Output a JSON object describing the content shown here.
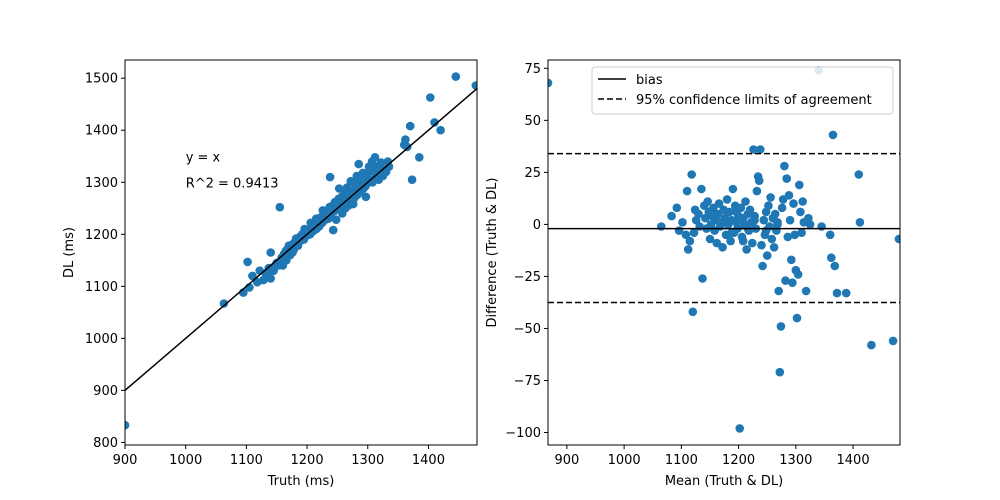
{
  "figure": {
    "description_colors": {
      "point": "#1f77b4",
      "line": "#000000"
    }
  },
  "chart_data": [
    {
      "type": "scatter",
      "title": "",
      "xlabel": "Truth (ms)",
      "ylabel": "DL (ms)",
      "xlim": [
        900,
        1480
      ],
      "ylim": [
        795,
        1535
      ],
      "xticks": [
        900,
        1000,
        1100,
        1200,
        1300,
        1400
      ],
      "yticks": [
        800,
        900,
        1000,
        1100,
        1200,
        1300,
        1400,
        1500
      ],
      "reference_line": {
        "label": "y = x",
        "slope": 1,
        "intercept": 0
      },
      "annotations": [
        "y = x",
        "R^2 = 0.9413"
      ],
      "series": [
        {
          "name": "samples",
          "color": "#1f77b4",
          "points": [
            [
              900,
              833
            ],
            [
              1063,
              1067
            ],
            [
              1095,
              1088
            ],
            [
              1102,
              1147
            ],
            [
              1105,
              1098
            ],
            [
              1110,
              1120
            ],
            [
              1118,
              1108
            ],
            [
              1122,
              1130
            ],
            [
              1128,
              1112
            ],
            [
              1132,
              1125
            ],
            [
              1137,
              1135
            ],
            [
              1140,
              1165
            ],
            [
              1140,
              1115
            ],
            [
              1145,
              1130
            ],
            [
              1150,
              1145
            ],
            [
              1153,
              1140
            ],
            [
              1155,
              1252
            ],
            [
              1158,
              1155
            ],
            [
              1160,
              1140
            ],
            [
              1162,
              1162
            ],
            [
              1165,
              1168
            ],
            [
              1168,
              1172
            ],
            [
              1170,
              1178
            ],
            [
              1172,
              1160
            ],
            [
              1175,
              1180
            ],
            [
              1178,
              1170
            ],
            [
              1180,
              1185
            ],
            [
              1182,
              1192
            ],
            [
              1185,
              1178
            ],
            [
              1188,
              1195
            ],
            [
              1190,
              1188
            ],
            [
              1192,
              1200
            ],
            [
              1195,
              1190
            ],
            [
              1197,
              1205
            ],
            [
              1200,
              1198
            ],
            [
              1202,
              1208
            ],
            [
              1205,
              1200
            ],
            [
              1207,
              1212
            ],
            [
              1210,
              1206
            ],
            [
              1212,
              1218
            ],
            [
              1215,
              1210
            ],
            [
              1218,
              1225
            ],
            [
              1220,
              1215
            ],
            [
              1222,
              1232
            ],
            [
              1225,
              1222
            ],
            [
              1228,
              1238
            ],
            [
              1230,
              1228
            ],
            [
              1232,
              1245
            ],
            [
              1235,
              1230
            ],
            [
              1237,
              1252
            ],
            [
              1238,
              1310
            ],
            [
              1240,
              1240
            ],
            [
              1242,
              1255
            ],
            [
              1243,
              1208
            ],
            [
              1245,
              1245
            ],
            [
              1247,
              1260
            ],
            [
              1248,
              1228
            ],
            [
              1250,
              1250
            ],
            [
              1252,
              1268
            ],
            [
              1253,
              1288
            ],
            [
              1255,
              1255
            ],
            [
              1257,
              1272
            ],
            [
              1258,
              1240
            ],
            [
              1260,
              1262
            ],
            [
              1262,
              1280
            ],
            [
              1263,
              1250
            ],
            [
              1265,
              1268
            ],
            [
              1267,
              1285
            ],
            [
              1268,
              1255
            ],
            [
              1270,
              1275
            ],
            [
              1272,
              1302
            ],
            [
              1273,
              1262
            ],
            [
              1275,
              1282
            ],
            [
              1277,
              1300
            ],
            [
              1278,
              1270
            ],
            [
              1280,
              1290
            ],
            [
              1282,
              1312
            ],
            [
              1283,
              1276
            ],
            [
              1285,
              1335
            ],
            [
              1287,
              1296
            ],
            [
              1288,
              1282
            ],
            [
              1290,
              1305
            ],
            [
              1292,
              1318
            ],
            [
              1293,
              1288
            ],
            [
              1295,
              1310
            ],
            [
              1297,
              1272
            ],
            [
              1298,
              1296
            ],
            [
              1300,
              1318
            ],
            [
              1302,
              1330
            ],
            [
              1303,
              1305
            ],
            [
              1305,
              1322
            ],
            [
              1307,
              1340
            ],
            [
              1308,
              1300
            ],
            [
              1310,
              1325
            ],
            [
              1312,
              1348
            ],
            [
              1313,
              1310
            ],
            [
              1315,
              1330
            ],
            [
              1318,
              1305
            ],
            [
              1320,
              1322
            ],
            [
              1322,
              1338
            ],
            [
              1325,
              1312
            ],
            [
              1328,
              1325
            ],
            [
              1330,
              1320
            ],
            [
              1333,
              1340
            ],
            [
              1335,
              1330
            ],
            [
              1360,
              1372
            ],
            [
              1362,
              1382
            ],
            [
              1365,
              1368
            ],
            [
              1370,
              1408
            ],
            [
              1373,
              1305
            ],
            [
              1385,
              1348
            ],
            [
              1403,
              1463
            ],
            [
              1410,
              1415
            ],
            [
              1420,
              1400
            ],
            [
              1445,
              1503
            ],
            [
              1478,
              1486
            ],
            [
              1215,
              1230
            ],
            [
              1226,
              1246
            ],
            [
              1256,
              1247
            ],
            [
              1266,
              1290
            ],
            [
              1186,
              1188
            ],
            [
              1196,
              1210
            ],
            [
              1176,
              1165
            ],
            [
              1166,
              1150
            ],
            [
              1146,
              1138
            ],
            [
              1136,
              1124
            ],
            [
              1206,
              1222
            ],
            [
              1246,
              1262
            ],
            [
              1276,
              1258
            ],
            [
              1296,
              1292
            ]
          ]
        }
      ]
    },
    {
      "type": "scatter",
      "title": "",
      "xlabel": "Mean (Truth & DL)",
      "ylabel": "Difference (Truth & DL)",
      "xlim": [
        867,
        1482
      ],
      "ylim": [
        -106,
        79
      ],
      "xticks": [
        900,
        1000,
        1100,
        1200,
        1300,
        1400
      ],
      "yticks": [
        -100,
        -75,
        -50,
        -25,
        0,
        25,
        50,
        75
      ],
      "bias": -2,
      "limits_of_agreement": [
        -37.5,
        34
      ],
      "legend": {
        "position": "top-right",
        "entries": [
          "bias",
          "95% confidence limits of agreement"
        ]
      },
      "series": [
        {
          "name": "differences",
          "color": "#1f77b4",
          "points": [
            [
              867,
              68
            ],
            [
              1065,
              -1
            ],
            [
              1083,
              4
            ],
            [
              1092,
              8
            ],
            [
              1096,
              -3
            ],
            [
              1102,
              1
            ],
            [
              1108,
              -5
            ],
            [
              1110,
              16
            ],
            [
              1112,
              -12
            ],
            [
              1115,
              -8
            ],
            [
              1118,
              24
            ],
            [
              1120,
              -42
            ],
            [
              1122,
              -4
            ],
            [
              1124,
              7
            ],
            [
              1126,
              2
            ],
            [
              1130,
              5
            ],
            [
              1132,
              -1
            ],
            [
              1135,
              17
            ],
            [
              1137,
              -26
            ],
            [
              1140,
              9
            ],
            [
              1142,
              3
            ],
            [
              1144,
              -2
            ],
            [
              1146,
              11
            ],
            [
              1148,
              6
            ],
            [
              1150,
              -7
            ],
            [
              1152,
              0
            ],
            [
              1154,
              4
            ],
            [
              1156,
              8
            ],
            [
              1158,
              -3
            ],
            [
              1160,
              2
            ],
            [
              1162,
              -9
            ],
            [
              1164,
              5
            ],
            [
              1166,
              10
            ],
            [
              1168,
              -1
            ],
            [
              1170,
              1
            ],
            [
              1172,
              -11
            ],
            [
              1174,
              7
            ],
            [
              1176,
              3
            ],
            [
              1178,
              -5
            ],
            [
              1180,
              12
            ],
            [
              1182,
              0
            ],
            [
              1184,
              6
            ],
            [
              1186,
              -8
            ],
            [
              1188,
              2
            ],
            [
              1190,
              17
            ],
            [
              1192,
              -4
            ],
            [
              1194,
              9
            ],
            [
              1196,
              1
            ],
            [
              1198,
              -2
            ],
            [
              1200,
              4
            ],
            [
              1202,
              -98
            ],
            [
              1204,
              8
            ],
            [
              1206,
              -6
            ],
            [
              1208,
              3
            ],
            [
              1210,
              0
            ],
            [
              1212,
              11
            ],
            [
              1214,
              -12
            ],
            [
              1216,
              5
            ],
            [
              1218,
              -3
            ],
            [
              1220,
              7
            ],
            [
              1222,
              1
            ],
            [
              1224,
              -9
            ],
            [
              1226,
              36
            ],
            [
              1228,
              4
            ],
            [
              1230,
              -2
            ],
            [
              1232,
              16
            ],
            [
              1234,
              23
            ],
            [
              1236,
              21
            ],
            [
              1238,
              36
            ],
            [
              1240,
              -10
            ],
            [
              1242,
              -20
            ],
            [
              1244,
              2
            ],
            [
              1246,
              -5
            ],
            [
              1248,
              6
            ],
            [
              1250,
              -15
            ],
            [
              1252,
              9
            ],
            [
              1254,
              -1
            ],
            [
              1256,
              13
            ],
            [
              1258,
              -7
            ],
            [
              1260,
              3
            ],
            [
              1262,
              -11
            ],
            [
              1264,
              5
            ],
            [
              1266,
              -3
            ],
            [
              1268,
              0
            ],
            [
              1270,
              -32
            ],
            [
              1272,
              -71
            ],
            [
              1274,
              -49
            ],
            [
              1276,
              8
            ],
            [
              1278,
              12
            ],
            [
              1280,
              28
            ],
            [
              1282,
              -27
            ],
            [
              1284,
              22
            ],
            [
              1286,
              -6
            ],
            [
              1288,
              14
            ],
            [
              1290,
              2
            ],
            [
              1292,
              -17
            ],
            [
              1294,
              -28
            ],
            [
              1296,
              10
            ],
            [
              1298,
              -5
            ],
            [
              1300,
              -22
            ],
            [
              1302,
              -45
            ],
            [
              1304,
              -24
            ],
            [
              1306,
              19
            ],
            [
              1308,
              6
            ],
            [
              1310,
              -4
            ],
            [
              1312,
              11
            ],
            [
              1314,
              1
            ],
            [
              1318,
              -32
            ],
            [
              1322,
              3
            ],
            [
              1325,
              0
            ],
            [
              1340,
              74
            ],
            [
              1345,
              -1
            ],
            [
              1360,
              -5
            ],
            [
              1362,
              -16
            ],
            [
              1365,
              43
            ],
            [
              1368,
              -20
            ],
            [
              1372,
              -33
            ],
            [
              1388,
              -33
            ],
            [
              1410,
              24
            ],
            [
              1412,
              1
            ],
            [
              1432,
              -58
            ],
            [
              1470,
              -56
            ],
            [
              1480,
              -7
            ],
            [
              1188,
              -4
            ],
            [
              1208,
              -8
            ],
            [
              1228,
              2
            ],
            [
              1248,
              -3
            ],
            [
              1268,
              1
            ],
            [
              1196,
              6
            ],
            [
              1216,
              -2
            ]
          ]
        }
      ]
    }
  ]
}
